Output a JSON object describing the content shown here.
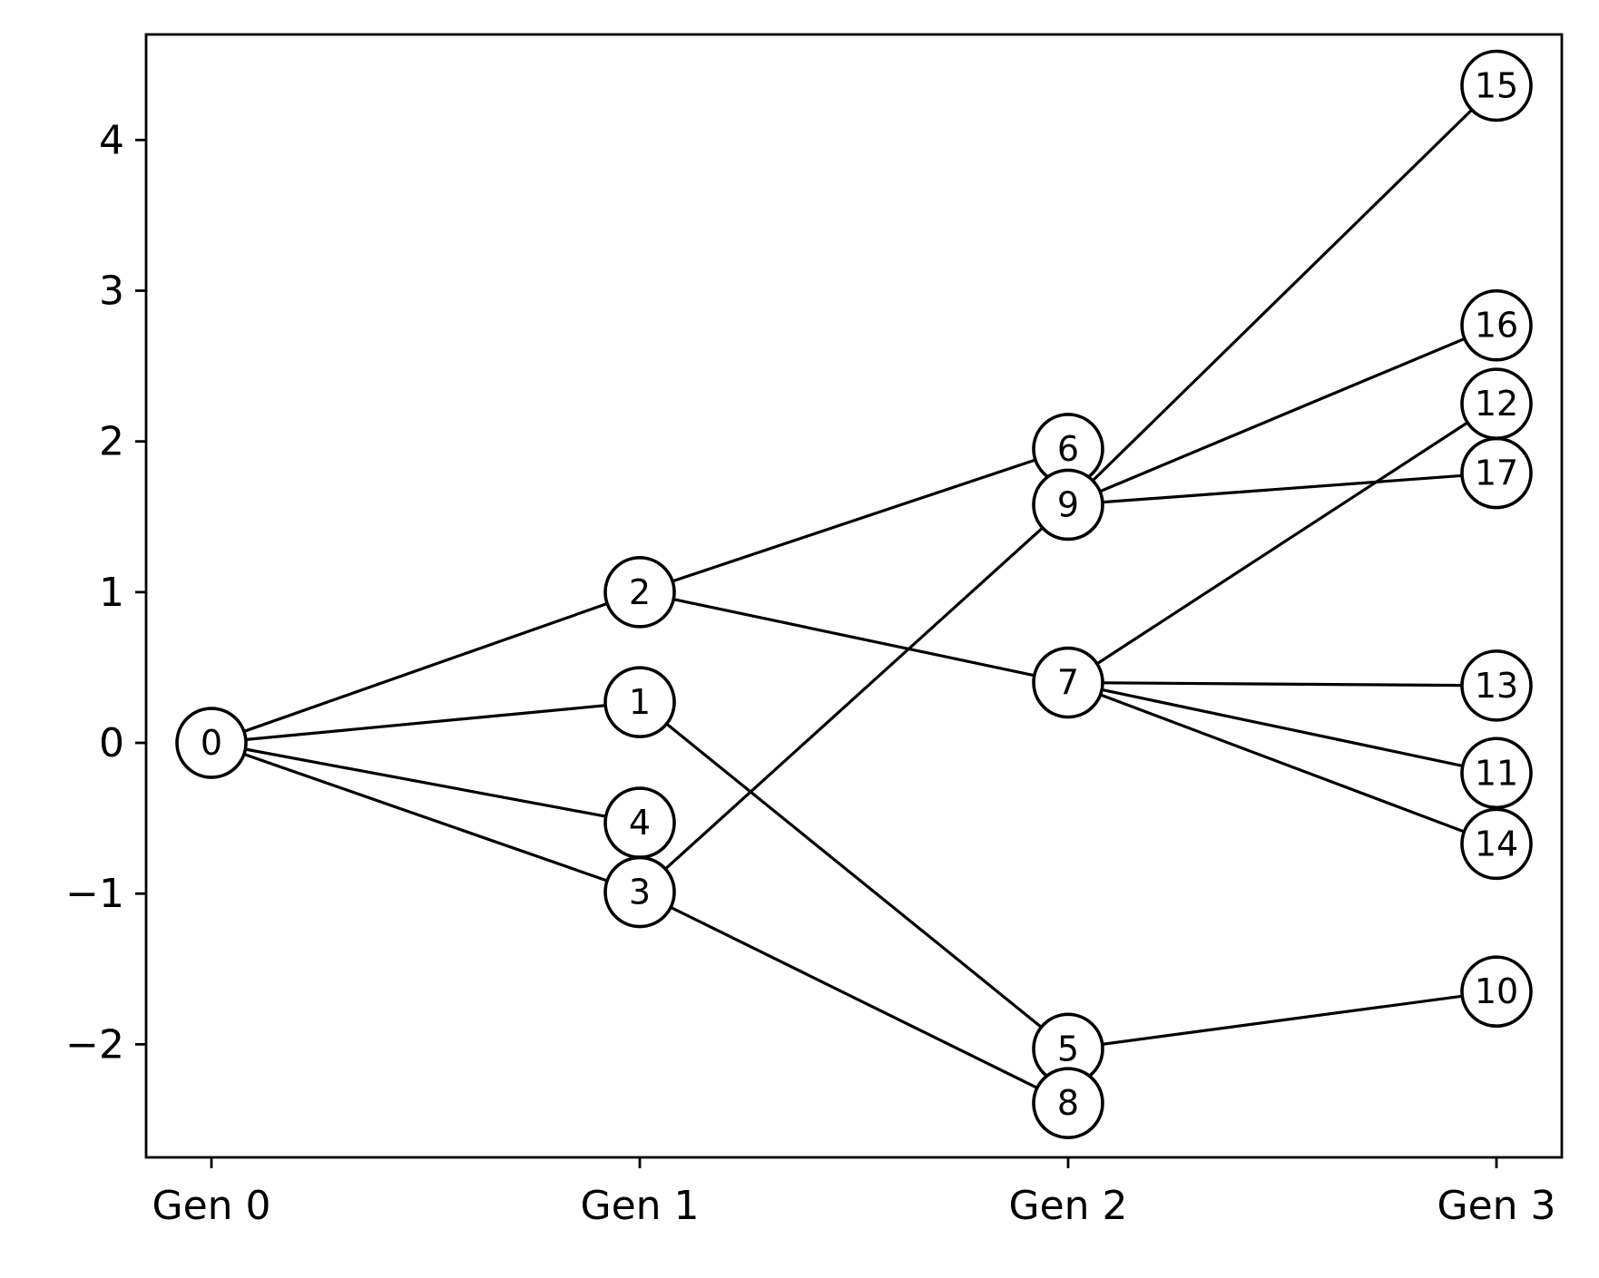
{
  "chart_data": {
    "type": "network",
    "title": "",
    "xlabel": "",
    "ylabel": "",
    "x_categories": [
      "Gen 0",
      "Gen 1",
      "Gen 2",
      "Gen 3"
    ],
    "ylim": [
      -2.75,
      4.7
    ],
    "y_ticks": [
      -2,
      -1,
      0,
      1,
      2,
      3,
      4
    ],
    "y_tick_labels": [
      "−2",
      "−1",
      "0",
      "1",
      "2",
      "3",
      "4"
    ],
    "nodes": [
      {
        "id": "0",
        "gen": 0,
        "y": 0.0
      },
      {
        "id": "1",
        "gen": 1,
        "y": 0.27
      },
      {
        "id": "2",
        "gen": 1,
        "y": 1.0
      },
      {
        "id": "3",
        "gen": 1,
        "y": -0.99
      },
      {
        "id": "4",
        "gen": 1,
        "y": -0.53
      },
      {
        "id": "5",
        "gen": 2,
        "y": -2.03
      },
      {
        "id": "6",
        "gen": 2,
        "y": 1.95
      },
      {
        "id": "7",
        "gen": 2,
        "y": 0.4
      },
      {
        "id": "8",
        "gen": 2,
        "y": -2.39
      },
      {
        "id": "9",
        "gen": 2,
        "y": 1.58
      },
      {
        "id": "10",
        "gen": 3,
        "y": -1.65
      },
      {
        "id": "11",
        "gen": 3,
        "y": -0.2
      },
      {
        "id": "12",
        "gen": 3,
        "y": 2.25
      },
      {
        "id": "13",
        "gen": 3,
        "y": 0.38
      },
      {
        "id": "14",
        "gen": 3,
        "y": -0.67
      },
      {
        "id": "15",
        "gen": 3,
        "y": 4.36
      },
      {
        "id": "16",
        "gen": 3,
        "y": 2.77
      },
      {
        "id": "17",
        "gen": 3,
        "y": 1.79
      }
    ],
    "edges": [
      [
        "0",
        "1"
      ],
      [
        "0",
        "2"
      ],
      [
        "0",
        "3"
      ],
      [
        "0",
        "4"
      ],
      [
        "1",
        "5"
      ],
      [
        "2",
        "6"
      ],
      [
        "2",
        "7"
      ],
      [
        "3",
        "8"
      ],
      [
        "3",
        "9"
      ],
      [
        "5",
        "10"
      ],
      [
        "7",
        "11"
      ],
      [
        "7",
        "12"
      ],
      [
        "7",
        "13"
      ],
      [
        "7",
        "14"
      ],
      [
        "9",
        "15"
      ],
      [
        "9",
        "16"
      ],
      [
        "9",
        "17"
      ]
    ],
    "grid": false,
    "legend": "none"
  }
}
